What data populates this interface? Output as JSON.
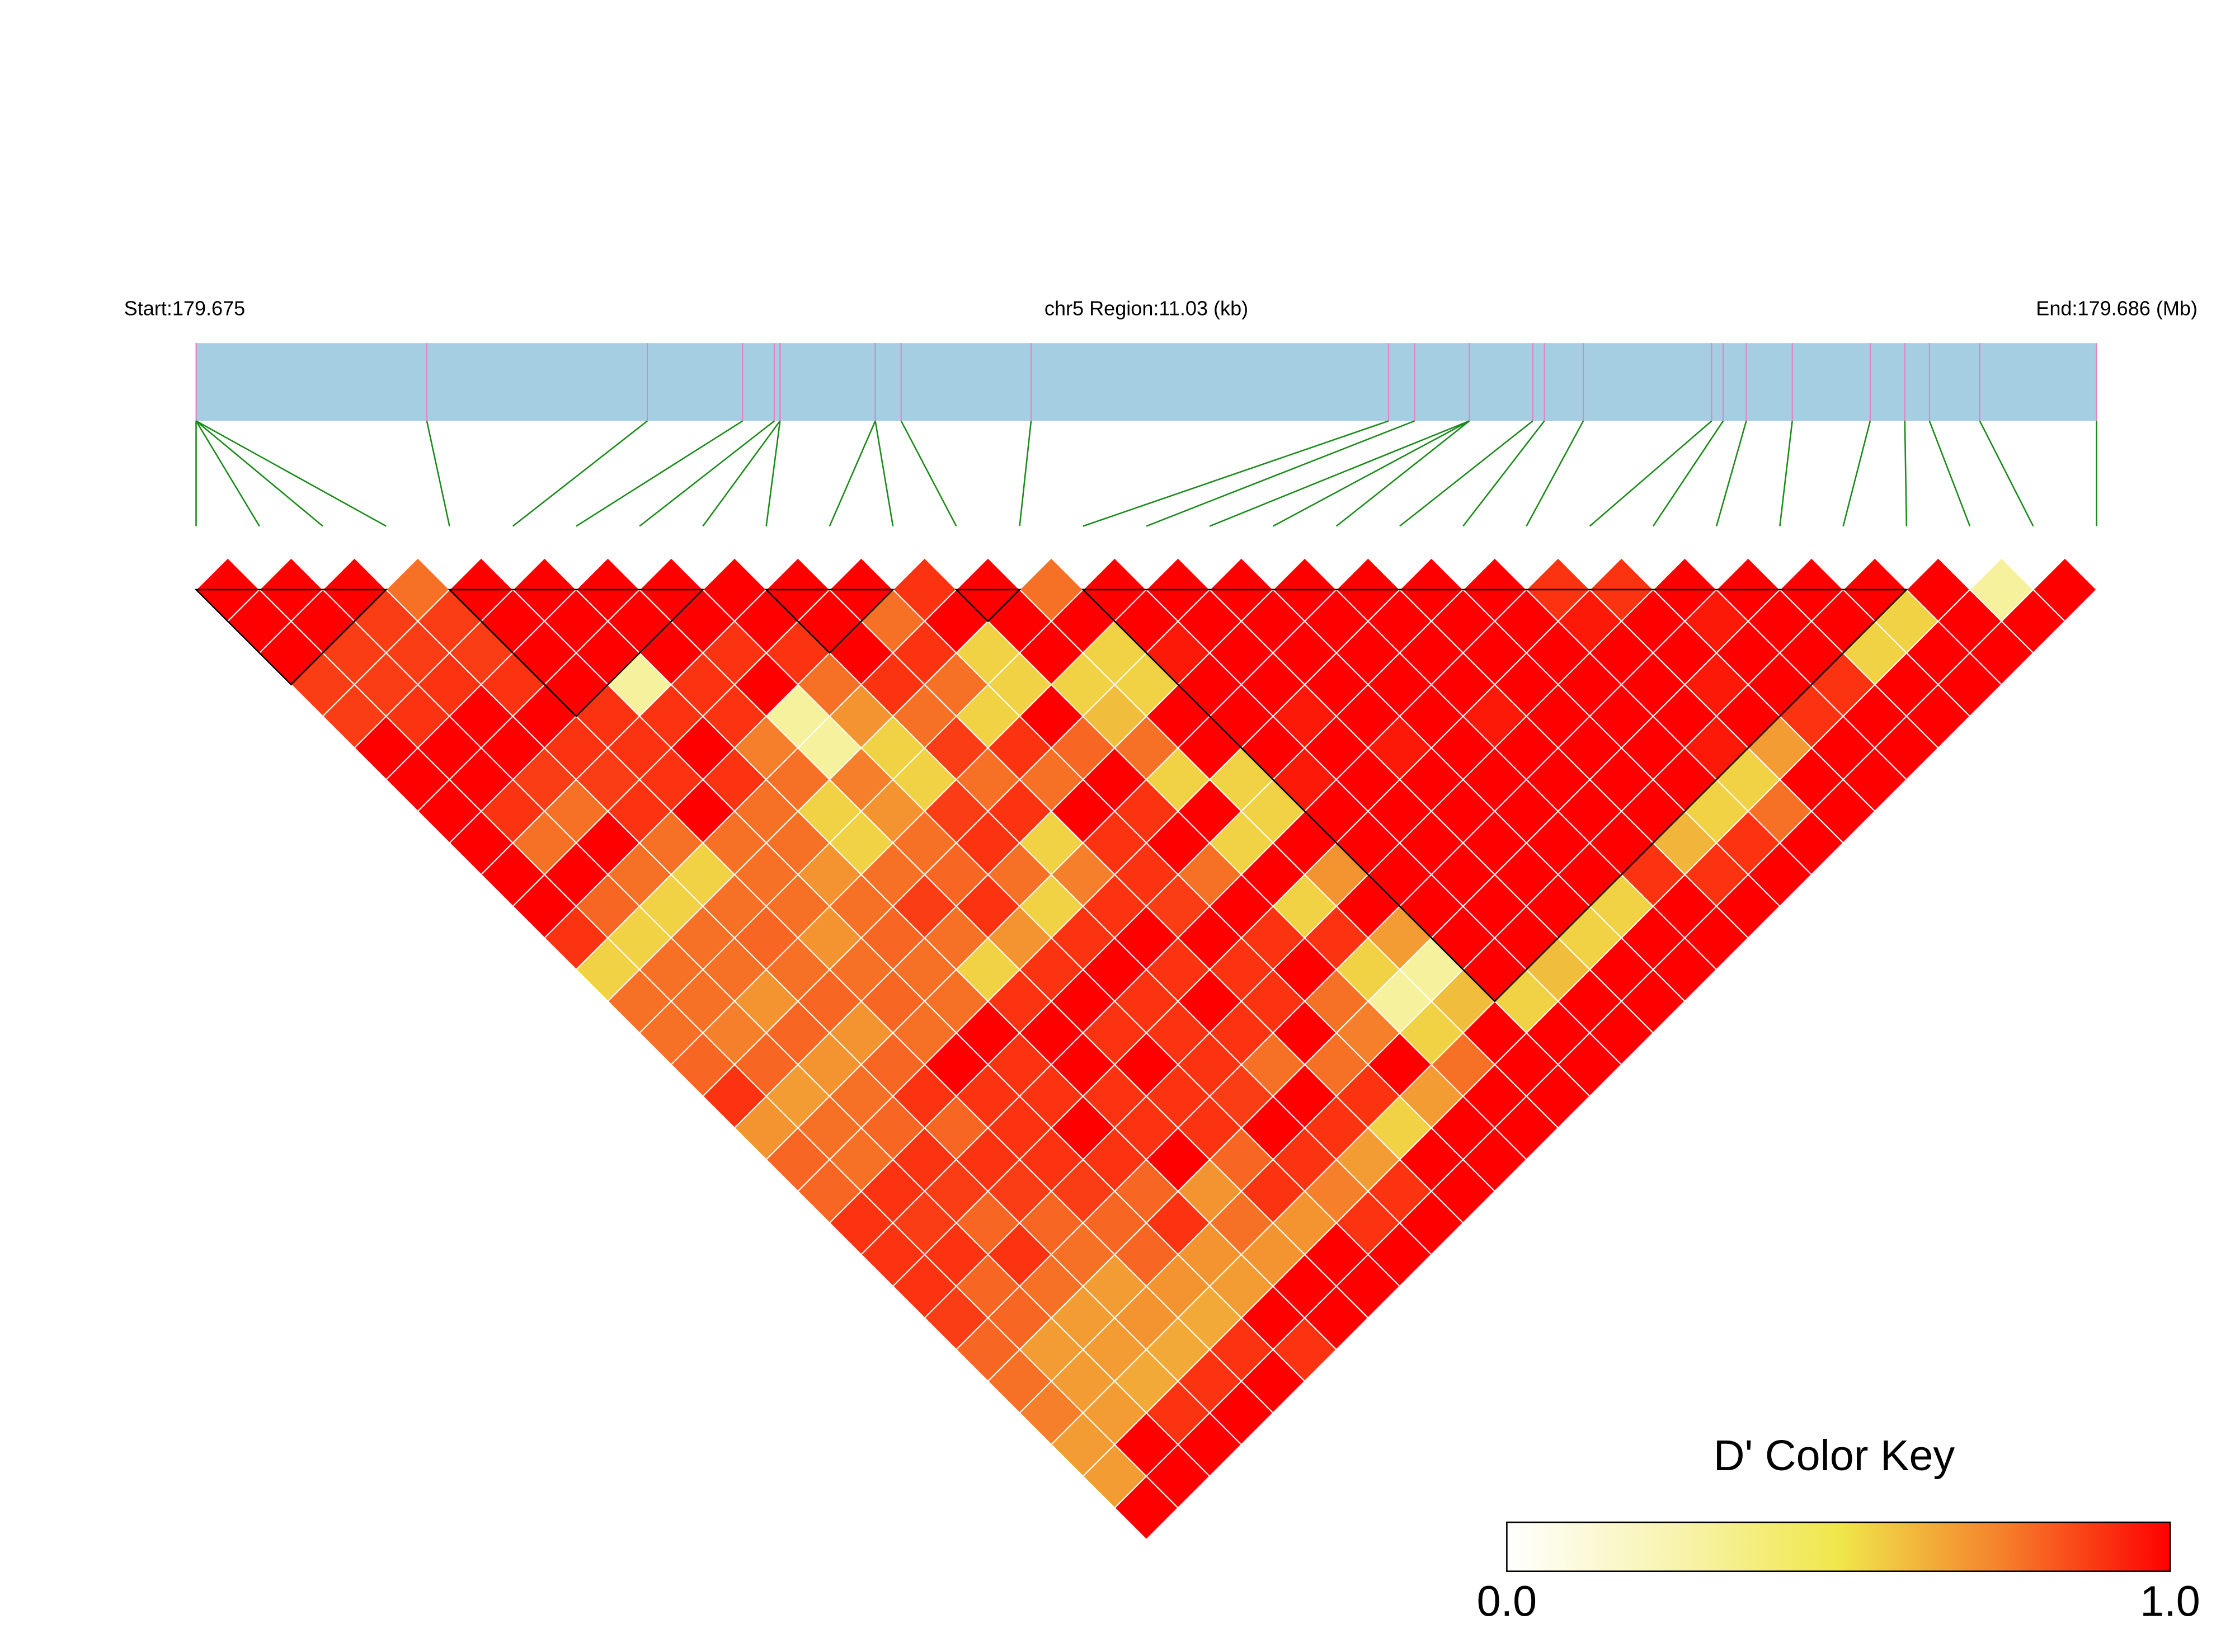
{
  "chart_data": {
    "type": "ld_heatmap",
    "start_label": "Start:179.675",
    "region_label": "chr5 Region:11.03 (kb)",
    "end_label": "End:179.686 (Mb)",
    "xlim": [
      0,
      11.03
    ],
    "snp_positions": [
      0,
      0,
      0,
      0,
      1.339,
      2.619,
      3.172,
      3.356,
      3.389,
      3.389,
      3.942,
      3.942,
      4.092,
      4.846,
      6.921,
      7.072,
      7.39,
      7.39,
      7.39,
      7.758,
      7.825,
      8.051,
      8.796,
      8.863,
      8.997,
      9.264,
      9.716,
      9.917,
      10.06,
      10.352,
      11.03
    ],
    "dprime": [
      [
        1,
        1,
        1,
        0.88,
        0.88,
        1,
        1,
        1,
        1,
        1,
        1,
        0.9,
        0.55,
        0.78,
        0.78,
        0.8,
        0.9,
        0.7,
        0.8,
        0.8,
        0.9,
        0.9,
        0.9,
        0.88,
        0.8,
        0.78,
        0.75,
        0.68,
        0.68,
        1
      ],
      [
        1,
        1,
        0.88,
        0.88,
        0.9,
        1,
        1,
        0.9,
        0.78,
        1,
        0.8,
        0.55,
        0.78,
        0.78,
        0.75,
        0.8,
        0.68,
        0.78,
        0.78,
        0.9,
        0.88,
        0.9,
        0.8,
        0.8,
        0.68,
        0.68,
        0.68,
        1,
        1
      ],
      [
        1,
        0.88,
        0.88,
        0.9,
        1,
        1,
        0.88,
        0.78,
        1,
        0.78,
        0.55,
        0.78,
        0.78,
        0.7,
        0.8,
        0.7,
        0.78,
        0.8,
        0.9,
        0.88,
        0.8,
        0.9,
        0.78,
        0.68,
        0.68,
        0.65,
        0.9,
        1
      ],
      [
        0.78,
        0.88,
        0.88,
        0.9,
        1,
        0.9,
        0.88,
        0.9,
        0.78,
        0.55,
        0.78,
        0.8,
        0.78,
        0.8,
        0.7,
        0.8,
        0.9,
        0.8,
        0.9,
        0.88,
        0.8,
        0.78,
        0.68,
        0.7,
        0.65,
        0.9,
        1
      ],
      [
        1,
        1,
        1,
        1,
        0.9,
        0.9,
        0.9,
        1,
        0.78,
        0.78,
        0.78,
        0.7,
        0.78,
        0.8,
        0.78,
        1,
        0.9,
        0.9,
        0.9,
        0.88,
        0.8,
        0.8,
        0.7,
        0.65,
        0.9,
        1
      ],
      [
        1,
        1,
        1,
        0.3,
        0.9,
        1,
        0.9,
        0.78,
        0.78,
        0.7,
        0.78,
        0.8,
        0.78,
        0.78,
        1,
        0.9,
        0.9,
        1,
        0.9,
        0.8,
        0.9,
        0.7,
        0.68,
        1,
        0.9
      ],
      [
        1,
        1,
        1,
        0.9,
        0.9,
        0.75,
        0.78,
        0.55,
        0.55,
        0.78,
        0.88,
        0.78,
        0.55,
        0.9,
        1,
        1,
        0.9,
        0.9,
        1,
        0.7,
        0.78,
        0.7,
        1,
        1
      ],
      [
        1,
        1,
        0.9,
        1,
        0.3,
        0.3,
        0.75,
        0.7,
        0.78,
        0.8,
        0.9,
        0.7,
        0.9,
        1,
        0.9,
        1,
        0.9,
        0.9,
        0.8,
        0.9,
        0.7,
        1,
        1
      ],
      [
        1,
        1,
        0.9,
        0.78,
        0.7,
        0.55,
        0.55,
        0.88,
        0.9,
        0.78,
        0.55,
        0.9,
        1,
        0.9,
        0.9,
        0.9,
        0.88,
        1,
        0.9,
        0.75,
        0.9,
        1
      ],
      [
        1,
        1,
        1,
        0.9,
        0.78,
        0.88,
        0.78,
        0.9,
        0.55,
        0.75,
        0.9,
        1,
        0.9,
        1,
        0.9,
        0.78,
        1,
        0.9,
        0.68,
        0.9,
        1
      ],
      [
        1,
        0.78,
        0.9,
        0.78,
        0.55,
        0.9,
        0.78,
        1,
        0.9,
        0.9,
        0.88,
        1,
        0.9,
        0.9,
        1,
        0.78,
        0.9,
        0.55,
        1,
        1
      ],
      [
        0.9,
        1,
        0.55,
        0.55,
        1,
        0.8,
        1,
        0.9,
        1,
        0.78,
        1,
        0.9,
        1,
        0.78,
        0.75,
        1,
        0.68,
        1,
        1
      ],
      [
        1,
        1,
        1,
        0.55,
        0.6,
        0.78,
        0.55,
        1,
        0.55,
        1,
        0.55,
        0.9,
        0.55,
        0.3,
        0.55,
        0.78,
        1,
        1
      ],
      [
        0.78,
        1,
        0.55,
        0.55,
        1,
        1,
        0.55,
        0.55,
        1,
        0.7,
        1,
        0.68,
        0.3,
        0.6,
        1,
        1,
        1
      ],
      [
        1,
        1,
        0.95,
        1,
        1,
        1,
        0.95,
        1,
        1,
        1,
        1,
        1,
        1,
        0.55,
        1,
        1
      ],
      [
        1,
        1,
        1,
        1,
        0.95,
        1,
        1,
        1,
        1,
        1,
        1,
        1,
        0.6,
        1,
        1
      ],
      [
        1,
        1,
        1,
        1,
        1,
        0.95,
        1,
        1,
        1,
        1,
        1,
        0.55,
        1,
        1
      ],
      [
        1,
        1,
        1,
        1,
        1,
        1,
        1,
        1,
        1,
        1,
        0.55,
        1,
        1
      ],
      [
        1,
        1,
        1,
        1,
        0.95,
        1,
        1,
        1,
        1,
        0.9,
        1,
        1
      ],
      [
        1,
        1,
        1,
        1,
        1,
        1,
        1,
        1,
        0.62,
        0.9,
        1
      ],
      [
        1,
        1,
        1,
        1,
        1,
        1,
        1,
        0.55,
        0.9,
        1
      ],
      [
        0.9,
        0.95,
        1,
        1,
        1,
        0.95,
        0.55,
        0.78,
        1
      ],
      [
        0.9,
        1,
        1,
        0.95,
        1,
        0.68,
        1,
        1
      ],
      [
        1,
        0.95,
        1,
        1,
        0.9,
        1,
        1
      ],
      [
        1,
        1,
        1,
        0.9,
        1,
        1
      ],
      [
        1,
        1,
        0.55,
        1,
        1
      ],
      [
        1,
        0.55,
        1,
        1
      ],
      [
        1,
        1,
        1
      ],
      [
        0.3,
        1
      ],
      [
        1
      ]
    ],
    "blocks": [
      [
        0,
        3
      ],
      [
        4,
        8
      ],
      [
        9,
        11
      ],
      [
        12,
        13
      ],
      [
        14,
        27
      ]
    ],
    "bar_color": "#a6cee3",
    "snp_line_color": "#e87fc0",
    "connector_color": "#1a8a1a",
    "block_color": "#000000",
    "colorscale": {
      "title": "D' Color Key",
      "colors": [
        "#ffffff",
        "#f8f4b0",
        "#efe74a",
        "#f57f2a",
        "#ff0000"
      ],
      "ticks": [
        {
          "value": 0,
          "label": "0.0"
        },
        {
          "value": 1,
          "label": "1.0"
        }
      ]
    }
  }
}
